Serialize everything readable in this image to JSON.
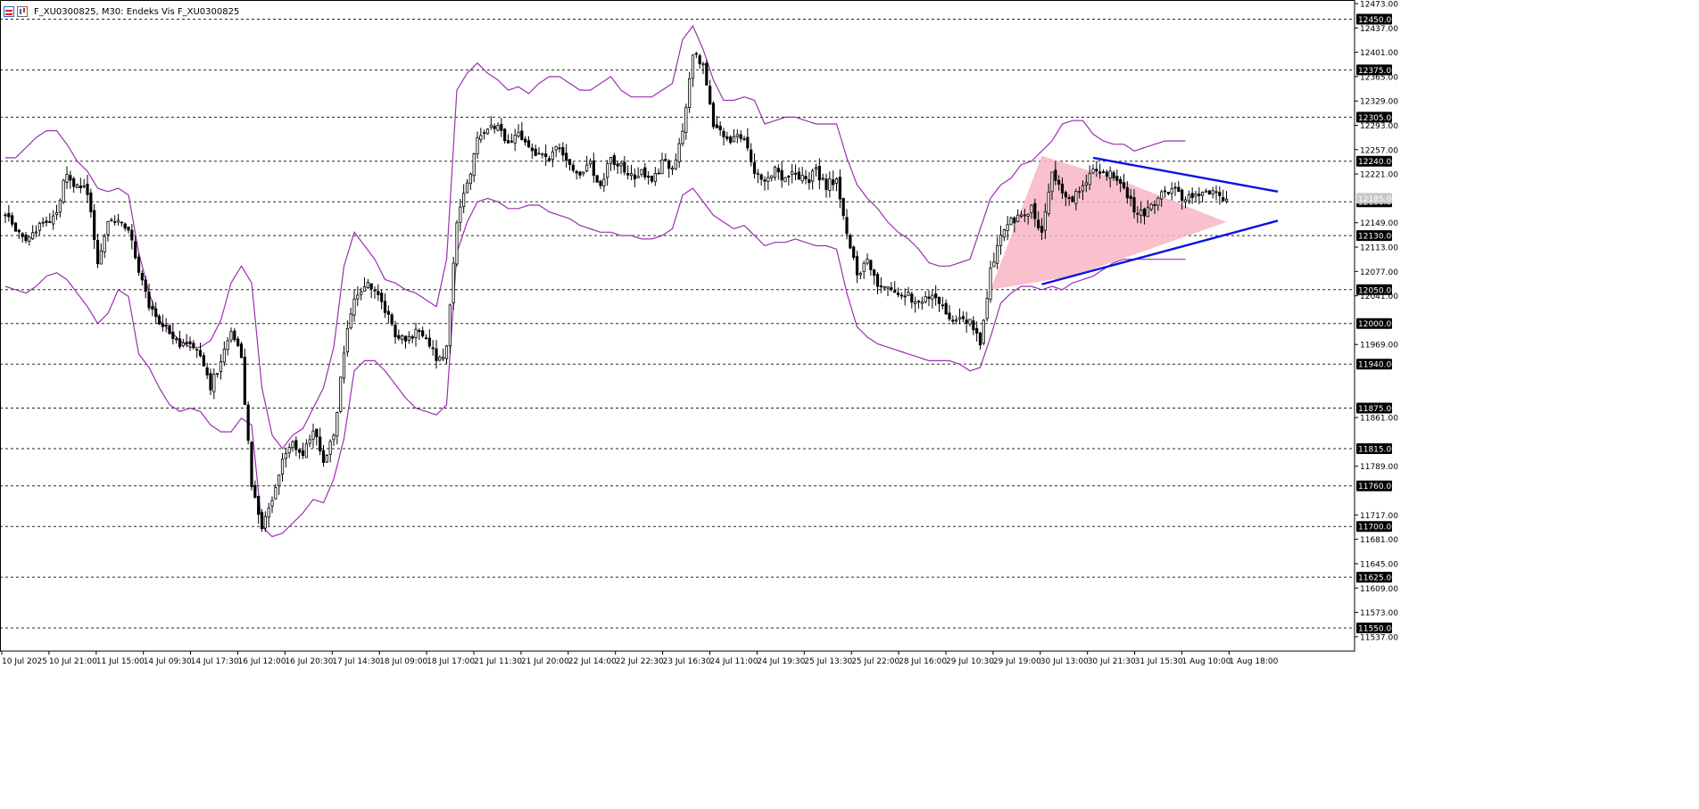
{
  "window": {
    "title": "F_XU0300825, M30:  Endeks Vis F_XU0300825",
    "icons": [
      "chart-window-icon",
      "symbol-icon"
    ]
  },
  "colors": {
    "background": "#ffffff",
    "candle": "#000000",
    "bands": "#9b30b0",
    "triangle_fill": "#f7b6c4",
    "triangle_lines": "#0a14e0",
    "grid_dash": "#000000",
    "price_label_bg": "#000000",
    "price_label_text": "#ffffff"
  },
  "chart_data": {
    "type": "candlestick",
    "symbol": "F_XU0300825",
    "timeframe": "M30",
    "ylim": [
      11521,
      12473
    ],
    "y_tick_labels": [
      "12473.00",
      "12437.00",
      "12401.00",
      "12365.00",
      "12329.00",
      "12293.00",
      "12257.00",
      "12221.00",
      "12149.00",
      "12113.00",
      "12077.00",
      "12041.00",
      "11969.00",
      "11861.00",
      "11789.00",
      "11717.00",
      "11681.00",
      "11645.00",
      "11609.00",
      "11573.00",
      "11537.00"
    ],
    "levels": [
      12450,
      12375,
      12305,
      12240,
      12180,
      12130,
      12050,
      12000,
      11940,
      11875,
      11815,
      11760,
      11700,
      11625,
      11550
    ],
    "level_labels": [
      "12450.00",
      "12375.00",
      "12305.00",
      "12240.00",
      "12180.00",
      "12130.00",
      "12050.00",
      "12000.00",
      "11940.00",
      "11875.00",
      "11815.00",
      "11760.00",
      "11700.00",
      "11625.00",
      "11550.00"
    ],
    "x_labels": [
      "10 Jul 2025",
      "10 Jul 21:00",
      "11 Jul 15:00",
      "14 Jul 09:30",
      "14 Jul 17:30",
      "16 Jul 12:00",
      "16 Jul 20:30",
      "17 Jul 14:30",
      "18 Jul 09:00",
      "18 Jul 17:00",
      "21 Jul 11:30",
      "21 Jul 20:00",
      "22 Jul 14:00",
      "22 Jul 22:30",
      "23 Jul 16:30",
      "24 Jul 11:00",
      "24 Jul 19:30",
      "25 Jul 13:30",
      "25 Jul 22:00",
      "28 Jul 16:00",
      "29 Jul 10:30",
      "29 Jul 19:00",
      "30 Jul 13:00",
      "30 Jul 21:30",
      "31 Jul 15:30",
      "1 Aug 10:00",
      "1 Aug 18:00"
    ],
    "close_path": [
      [
        0,
        12160
      ],
      [
        1,
        12140
      ],
      [
        2,
        12125
      ],
      [
        3,
        12140
      ],
      [
        4,
        12150
      ],
      [
        5,
        12165
      ],
      [
        6,
        12225
      ],
      [
        7,
        12200
      ],
      [
        8,
        12195
      ],
      [
        9,
        12085
      ],
      [
        10,
        12145
      ],
      [
        11,
        12150
      ],
      [
        12,
        12140
      ],
      [
        13,
        12080
      ],
      [
        14,
        12030
      ],
      [
        15,
        12005
      ],
      [
        16,
        11985
      ],
      [
        17,
        11970
      ],
      [
        18,
        11975
      ],
      [
        19,
        11955
      ],
      [
        20,
        11905
      ],
      [
        21,
        11945
      ],
      [
        22,
        11985
      ],
      [
        23,
        11950
      ],
      [
        24,
        11760
      ],
      [
        25,
        11700
      ],
      [
        26,
        11745
      ],
      [
        27,
        11800
      ],
      [
        28,
        11825
      ],
      [
        29,
        11810
      ],
      [
        30,
        11840
      ],
      [
        31,
        11800
      ],
      [
        32,
        11830
      ],
      [
        33,
        11960
      ],
      [
        34,
        12040
      ],
      [
        35,
        12055
      ],
      [
        36,
        12055
      ],
      [
        37,
        12020
      ],
      [
        38,
        11980
      ],
      [
        39,
        11975
      ],
      [
        40,
        11990
      ],
      [
        41,
        11980
      ],
      [
        42,
        11945
      ],
      [
        43,
        11960
      ],
      [
        44,
        12150
      ],
      [
        45,
        12205
      ],
      [
        46,
        12270
      ],
      [
        47,
        12285
      ],
      [
        48,
        12290
      ],
      [
        49,
        12260
      ],
      [
        50,
        12280
      ],
      [
        51,
        12265
      ],
      [
        52,
        12250
      ],
      [
        53,
        12245
      ],
      [
        54,
        12260
      ],
      [
        55,
        12240
      ],
      [
        56,
        12220
      ],
      [
        57,
        12235
      ],
      [
        58,
        12200
      ],
      [
        59,
        12245
      ],
      [
        60,
        12230
      ],
      [
        61,
        12215
      ],
      [
        62,
        12225
      ],
      [
        63,
        12205
      ],
      [
        64,
        12240
      ],
      [
        65,
        12230
      ],
      [
        66,
        12280
      ],
      [
        67,
        12400
      ],
      [
        68,
        12385
      ],
      [
        69,
        12295
      ],
      [
        70,
        12275
      ],
      [
        71,
        12270
      ],
      [
        72,
        12280
      ],
      [
        73,
        12225
      ],
      [
        74,
        12210
      ],
      [
        75,
        12225
      ],
      [
        76,
        12215
      ],
      [
        77,
        12220
      ],
      [
        78,
        12210
      ],
      [
        79,
        12225
      ],
      [
        80,
        12205
      ],
      [
        81,
        12215
      ],
      [
        82,
        12130
      ],
      [
        83,
        12075
      ],
      [
        84,
        12090
      ],
      [
        85,
        12060
      ],
      [
        86,
        12050
      ],
      [
        87,
        12045
      ],
      [
        88,
        12040
      ],
      [
        89,
        12035
      ],
      [
        90,
        12040
      ],
      [
        91,
        12035
      ],
      [
        92,
        12010
      ],
      [
        93,
        12005
      ],
      [
        94,
        12000
      ],
      [
        95,
        11975
      ],
      [
        96,
        12075
      ],
      [
        97,
        12125
      ],
      [
        98,
        12150
      ],
      [
        99,
        12165
      ],
      [
        100,
        12170
      ],
      [
        101,
        12130
      ],
      [
        102,
        12225
      ],
      [
        103,
        12195
      ],
      [
        104,
        12185
      ],
      [
        105,
        12210
      ],
      [
        106,
        12225
      ],
      [
        107,
        12225
      ],
      [
        108,
        12220
      ],
      [
        109,
        12200
      ],
      [
        110,
        12170
      ],
      [
        111,
        12165
      ],
      [
        112,
        12180
      ],
      [
        113,
        12195
      ],
      [
        114,
        12195
      ],
      [
        115,
        12185
      ],
      [
        116,
        12190
      ],
      [
        117,
        12200
      ],
      [
        118,
        12190
      ],
      [
        119,
        12185
      ]
    ],
    "bollinger_bands": {
      "period_count": 120,
      "upper": [
        12245,
        12245,
        12260,
        12275,
        12285,
        12285,
        12265,
        12240,
        12225,
        12200,
        12195,
        12200,
        12190,
        12105,
        12045,
        12005,
        11990,
        11975,
        11965,
        11965,
        11975,
        12005,
        12060,
        12085,
        12060,
        11905,
        11835,
        11815,
        11835,
        11845,
        11875,
        11905,
        11965,
        12085,
        12135,
        12115,
        12095,
        12065,
        12060,
        12050,
        12045,
        12035,
        12025,
        12095,
        12345,
        12370,
        12385,
        12370,
        12360,
        12345,
        12350,
        12340,
        12355,
        12365,
        12365,
        12355,
        12345,
        12345,
        12355,
        12365,
        12345,
        12335,
        12335,
        12335,
        12345,
        12355,
        12420,
        12440,
        12405,
        12360,
        12330,
        12330,
        12335,
        12330,
        12295,
        12300,
        12305,
        12305,
        12300,
        12295,
        12295,
        12295,
        12245,
        12205,
        12185,
        12170,
        12150,
        12135,
        12125,
        12110,
        12090,
        12085,
        12085,
        12090,
        12095,
        12140,
        12185,
        12205,
        12215,
        12235,
        12240,
        12255,
        12270,
        12295,
        12300,
        12300,
        12280,
        12270,
        12265,
        12265,
        12255,
        12260,
        12265,
        12270,
        12270,
        12270
      ],
      "lower": [
        12055,
        12050,
        12045,
        12055,
        12070,
        12075,
        12065,
        12045,
        12025,
        12000,
        12015,
        12050,
        12040,
        11955,
        11935,
        11905,
        11880,
        11870,
        11875,
        11870,
        11850,
        11840,
        11840,
        11860,
        11850,
        11700,
        11685,
        11690,
        11705,
        11720,
        11740,
        11735,
        11770,
        11830,
        11930,
        11945,
        11945,
        11930,
        11910,
        11890,
        11875,
        11870,
        11865,
        11880,
        12105,
        12150,
        12180,
        12185,
        12180,
        12170,
        12170,
        12175,
        12175,
        12165,
        12160,
        12155,
        12145,
        12140,
        12135,
        12135,
        12130,
        12130,
        12125,
        12125,
        12130,
        12140,
        12190,
        12200,
        12180,
        12160,
        12150,
        12140,
        12145,
        12130,
        12115,
        12120,
        12120,
        12125,
        12120,
        12115,
        12115,
        12110,
        12045,
        11995,
        11980,
        11970,
        11965,
        11960,
        11955,
        11950,
        11945,
        11945,
        11945,
        11940,
        11930,
        11935,
        11980,
        12030,
        12045,
        12055,
        12055,
        12050,
        12055,
        12050,
        12060,
        12065,
        12070,
        12080,
        12090,
        12095,
        12095,
        12095,
        12095,
        12095,
        12095,
        12095
      ],
      "drawn_until_index": 118
    },
    "triangle": {
      "shaded_vertices": [
        [
          96,
          12050
        ],
        [
          101,
          12248
        ],
        [
          109,
          12210
        ],
        [
          119,
          12150
        ],
        [
          104,
          12070
        ]
      ],
      "upper_line": [
        [
          106,
          12245
        ],
        [
          124,
          12195
        ]
      ],
      "lower_line": [
        [
          101,
          12058
        ],
        [
          124,
          12152
        ]
      ]
    },
    "current_price": 12185,
    "current_price_label": "12185.00"
  }
}
